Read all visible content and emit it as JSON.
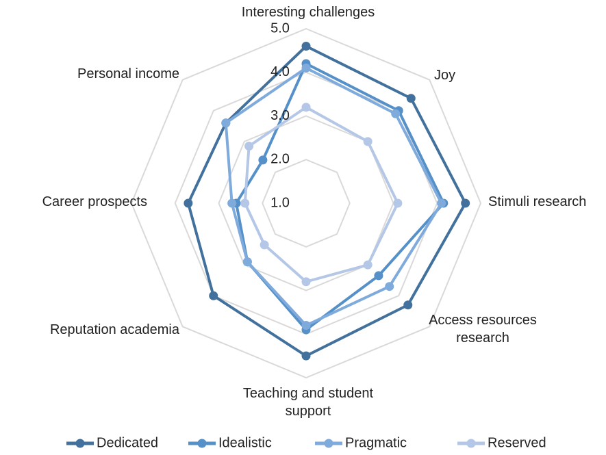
{
  "chart_data": {
    "type": "radar",
    "categories": [
      "Interesting challenges",
      "Joy",
      "Stimuli research",
      "Access resources research",
      "Teaching and student support",
      "Reputation academia",
      "Career prospects",
      "Personal income"
    ],
    "series": [
      {
        "name": "Dedicated",
        "color": "#41719c",
        "values": [
          4.6,
          4.4,
          4.65,
          4.3,
          4.5,
          4.0,
          3.7,
          3.6
        ]
      },
      {
        "name": "Idealistic",
        "color": "#5590c8",
        "values": [
          4.2,
          4.0,
          4.15,
          3.35,
          3.9,
          2.9,
          2.6,
          2.4
        ]
      },
      {
        "name": "Pragmatic",
        "color": "#7faadc",
        "values": [
          4.1,
          3.9,
          4.1,
          3.7,
          3.8,
          2.9,
          2.7,
          3.6
        ]
      },
      {
        "name": "Reserved",
        "color": "#b4c7e7",
        "values": [
          3.2,
          3.0,
          3.1,
          3.0,
          2.8,
          2.35,
          2.4,
          2.85
        ]
      }
    ],
    "ylim": [
      1,
      5
    ],
    "yticks": [
      {
        "value": 1,
        "label": "1.0"
      },
      {
        "value": 2,
        "label": "2.0"
      },
      {
        "value": 3,
        "label": "3.0"
      },
      {
        "value": 4,
        "label": "4.0"
      },
      {
        "value": 5,
        "label": "5.0"
      }
    ],
    "grid": true,
    "legend": "bottom"
  }
}
